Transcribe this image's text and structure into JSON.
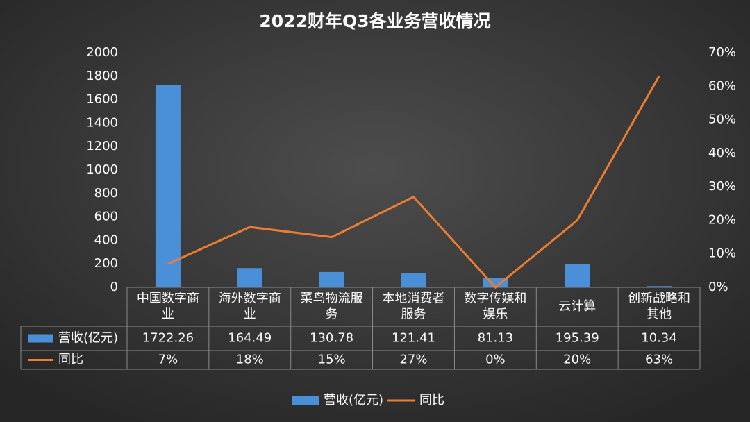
{
  "chart_data": {
    "type": "bar-line-table",
    "title": "2022财年Q3各业务营收情况",
    "categories": [
      "中国数字商业",
      "海外数字商业",
      "菜鸟物流服务",
      "本地消费者服务",
      "数字传媒和娱乐",
      "云计算",
      "创新战略和其他"
    ],
    "series": [
      {
        "name": "营收(亿元)",
        "type": "bar",
        "color": "#4a90d9",
        "values": [
          1722.26,
          164.49,
          130.78,
          121.41,
          81.13,
          195.39,
          10.34
        ]
      },
      {
        "name": "同比",
        "type": "line",
        "axis": "y2",
        "color": "#ed7d31",
        "values": [
          7,
          18,
          15,
          27,
          0,
          20,
          63
        ],
        "value_labels": [
          "7%",
          "18%",
          "15%",
          "27%",
          "0%",
          "20%",
          "63%"
        ]
      }
    ],
    "ylim": [
      0,
      2000
    ],
    "yticks": [
      0,
      200,
      400,
      600,
      800,
      1000,
      1200,
      1400,
      1600,
      1800,
      2000
    ],
    "y2lim": [
      0,
      70
    ],
    "y2ticks": [
      {
        "value": 0,
        "label": "0%"
      },
      {
        "value": 10,
        "label": "10%"
      },
      {
        "value": 20,
        "label": "20%"
      },
      {
        "value": 30,
        "label": "30%"
      },
      {
        "value": 40,
        "label": "40%"
      },
      {
        "value": 50,
        "label": "50%"
      },
      {
        "value": 60,
        "label": "60%"
      },
      {
        "value": 70,
        "label": "70%"
      }
    ],
    "legend": "bottom"
  }
}
